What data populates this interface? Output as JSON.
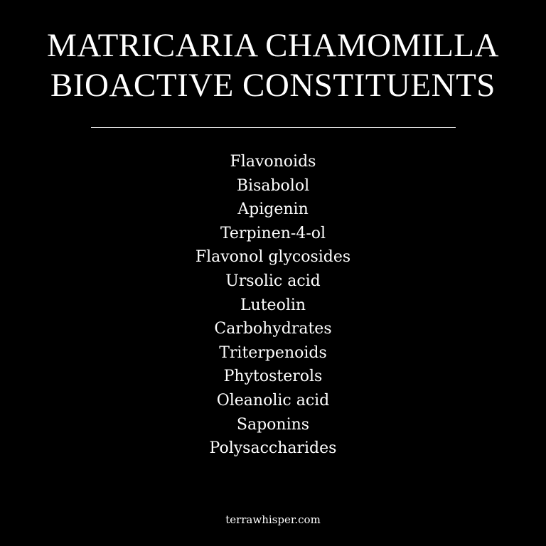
{
  "title": {
    "line1": "MATRICARIA CHAMOMILLA",
    "line2": "BIOACTIVE CONSTITUENTS"
  },
  "constituents": [
    "Flavonoids",
    "Bisabolol",
    "Apigenin",
    "Terpinen-4-ol",
    "Flavonol glycosides",
    "Ursolic acid",
    "Luteolin",
    "Carbohydrates",
    "Triterpenoids",
    "Phytosterols",
    "Oleanolic acid",
    "Saponins",
    "Polysaccharides"
  ],
  "footer": {
    "site": "terrawhisper.com"
  },
  "colors": {
    "background": "#000000",
    "text": "#ffffff"
  }
}
